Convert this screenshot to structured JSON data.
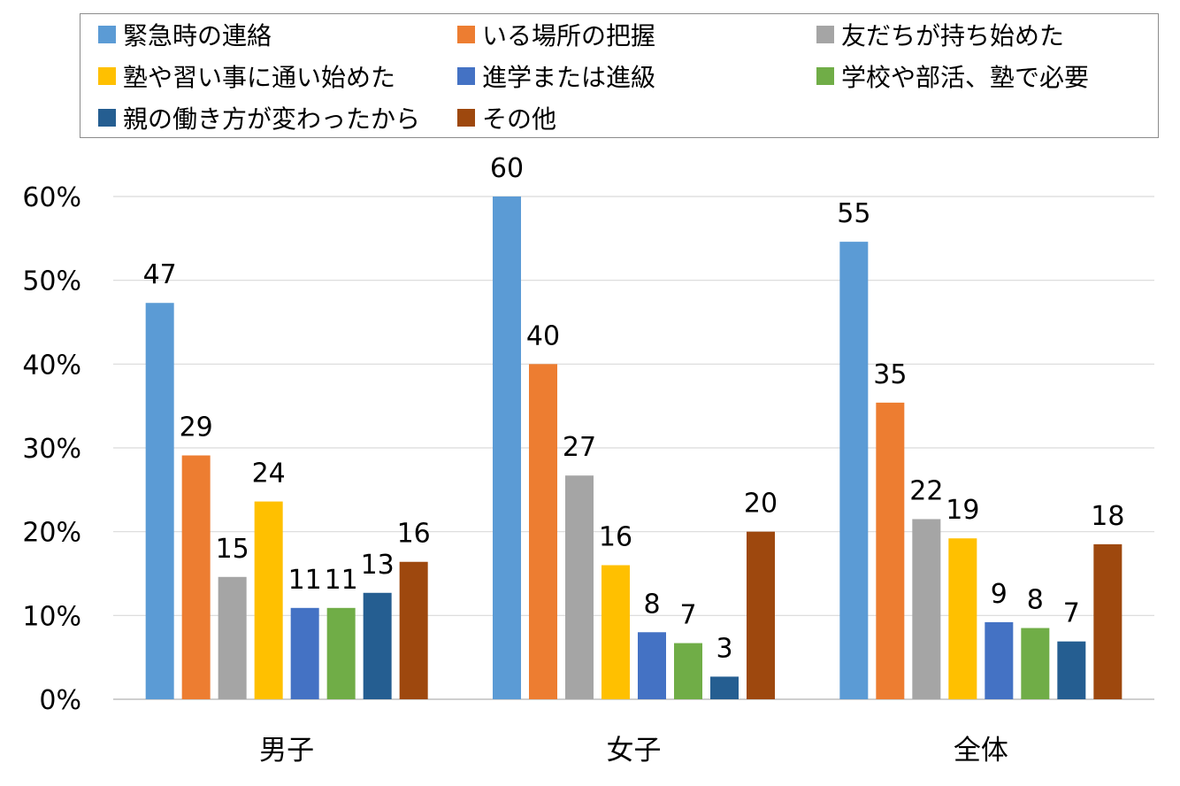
{
  "chart_data": {
    "type": "bar",
    "categories": [
      "男子",
      "女子",
      "全体"
    ],
    "series": [
      {
        "name": "緊急時の連絡",
        "color": "#5b9bd5",
        "values": [
          47,
          60,
          55
        ],
        "bar_values": [
          47.3,
          60.0,
          54.6
        ],
        "labels": [
          "47",
          "60",
          "55"
        ]
      },
      {
        "name": "いる場所の把握",
        "color": "#ed7d31",
        "values": [
          29,
          40,
          35
        ],
        "bar_values": [
          29.1,
          40.0,
          35.4
        ],
        "labels": [
          "29",
          "40",
          "35"
        ]
      },
      {
        "name": "友だちが持ち始めた",
        "color": "#a5a5a5",
        "values": [
          15,
          27,
          22
        ],
        "bar_values": [
          14.6,
          26.7,
          21.5
        ],
        "labels": [
          "15",
          "27",
          "22"
        ]
      },
      {
        "name": "塾や習い事に通い始めた",
        "color": "#ffc000",
        "values": [
          24,
          16,
          19
        ],
        "bar_values": [
          23.6,
          16.0,
          19.2
        ],
        "labels": [
          "24",
          "16",
          "19"
        ]
      },
      {
        "name": "進学または進級",
        "color": "#4472c4",
        "values": [
          11,
          8,
          9
        ],
        "bar_values": [
          10.9,
          8.0,
          9.2
        ],
        "labels": [
          "11",
          "8",
          "9"
        ]
      },
      {
        "name": "学校や部活、塾で必要",
        "color": "#70ad47",
        "values": [
          11,
          7,
          8
        ],
        "bar_values": [
          10.9,
          6.7,
          8.5
        ],
        "labels": [
          "11",
          "7",
          "8"
        ]
      },
      {
        "name": "親の働き方が変わったから",
        "color": "#255e91",
        "values": [
          13,
          3,
          7
        ],
        "bar_values": [
          12.7,
          2.7,
          6.9
        ],
        "labels": [
          "13",
          "3",
          "7"
        ]
      },
      {
        "name": "その他",
        "color": "#9e480e",
        "values": [
          16,
          20,
          18
        ],
        "bar_values": [
          16.4,
          20.0,
          18.5
        ],
        "labels": [
          "16",
          "20",
          "18"
        ]
      }
    ],
    "ylim": [
      0,
      60
    ],
    "yticks": [
      "0%",
      "10%",
      "20%",
      "30%",
      "40%",
      "50%",
      "60%"
    ],
    "grid": true,
    "legend": "top",
    "xlabel": "",
    "ylabel": "",
    "title": ""
  }
}
